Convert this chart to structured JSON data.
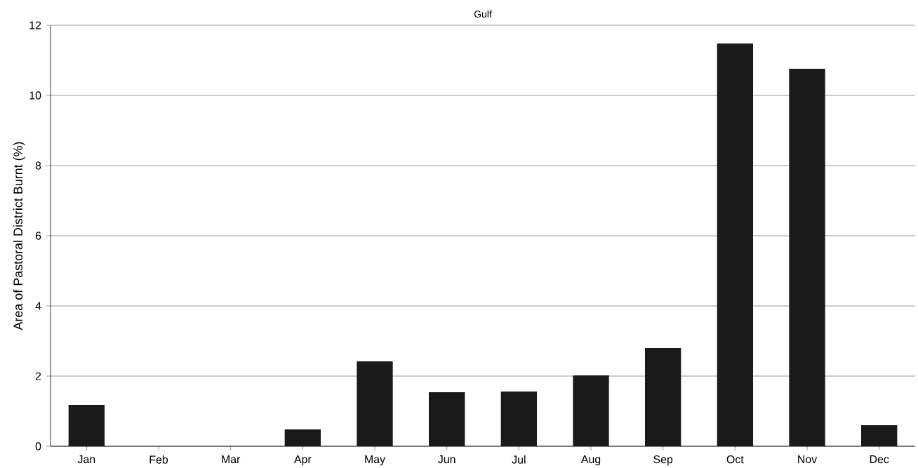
{
  "chart_data": {
    "type": "bar",
    "title": "Gulf",
    "ylabel": "Area of Pastoral District Burnt (%)",
    "categories": [
      "Jan",
      "Feb",
      "Mar",
      "Apr",
      "May",
      "Jun",
      "Jul",
      "Aug",
      "Sep",
      "Oct",
      "Nov",
      "Dec"
    ],
    "values": [
      1.18,
      0,
      0,
      0.48,
      2.42,
      1.54,
      1.56,
      2.02,
      2.8,
      11.48,
      10.76,
      0.6
    ],
    "color": "#1a1a1a",
    "ylim": [
      0,
      12
    ],
    "yticks": [
      0,
      2,
      4,
      6,
      8,
      10,
      12
    ],
    "grid": "y"
  }
}
